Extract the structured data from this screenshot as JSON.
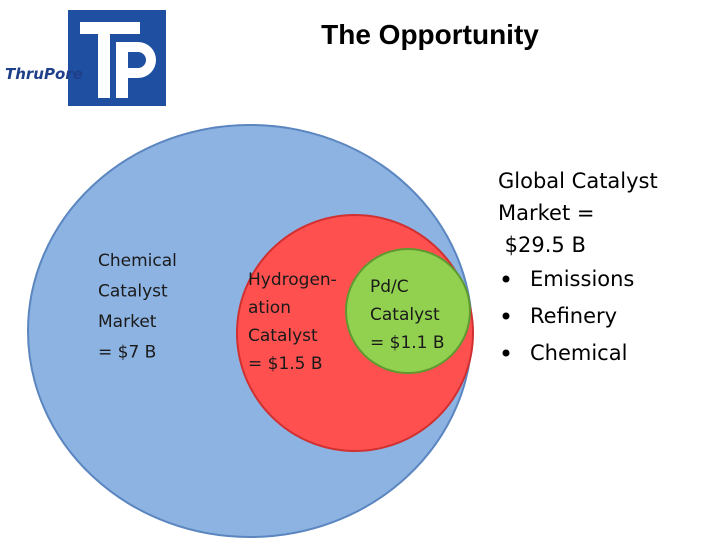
{
  "logo": {
    "text": "ThruPore"
  },
  "title": "The Opportunity",
  "circles": [
    {
      "lines": [
        "Chemical",
        "Catalyst",
        "Market",
        "= $7 B"
      ]
    },
    {
      "lines": [
        "Hydrogen-",
        "ation",
        "Catalyst",
        "= $1.5 B"
      ]
    },
    {
      "lines": [
        "Pd/C",
        "Catalyst",
        "= $1.1 B"
      ]
    }
  ],
  "summary": {
    "lines": [
      "Global Catalyst",
      "Market =",
      " $29.5 B"
    ],
    "bullets": [
      "Emissions",
      "Refinery",
      "Chemical"
    ]
  }
}
